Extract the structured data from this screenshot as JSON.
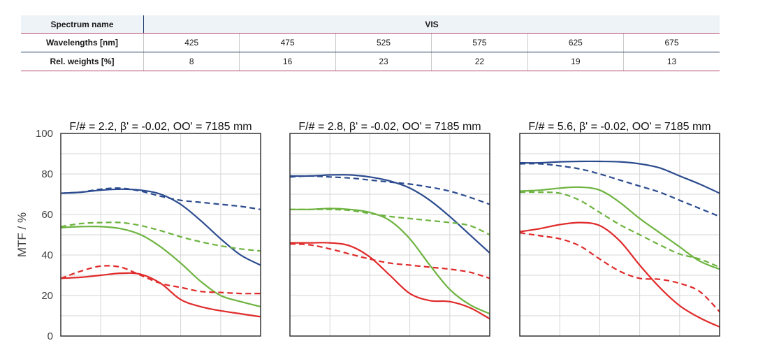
{
  "spectrum_table": {
    "spectrum_label": "Spectrum name",
    "spectrum_value": "VIS",
    "wavelength_label": "Wavelengths [nm]",
    "wavelengths": [
      "425",
      "475",
      "525",
      "575",
      "625",
      "675"
    ],
    "weights_label": "Rel. weights [%]",
    "weights": [
      "8",
      "16",
      "23",
      "22",
      "19",
      "13"
    ]
  },
  "colors": {
    "blue": "#2b4b8f",
    "green": "#6db33f",
    "red": "#e02a2a",
    "grid": "#d6d6d6",
    "frame": "#333333"
  },
  "chart_data": [
    {
      "type": "line",
      "title": "F/# = 2.2, β' = -0.02, OO' = 7185 mm",
      "ylabel": "MTF / %",
      "ylim": [
        0,
        100
      ],
      "yticks": [
        "0",
        "20",
        "40",
        "60",
        "80",
        "100"
      ],
      "grid": true,
      "x": [
        0,
        0.1,
        0.2,
        0.3,
        0.4,
        0.5,
        0.6,
        0.7,
        0.8,
        0.9,
        1.0
      ],
      "series": [
        {
          "color": "blue",
          "style": "solid",
          "values": [
            70.5,
            71,
            72,
            72.5,
            72,
            70,
            65,
            57,
            48,
            40,
            35
          ]
        },
        {
          "color": "blue",
          "style": "dashed",
          "values": [
            70.5,
            71,
            72.5,
            73,
            71.5,
            69,
            67,
            66,
            65,
            64,
            62.5
          ]
        },
        {
          "color": "green",
          "style": "solid",
          "values": [
            53.5,
            54,
            54,
            53,
            50,
            44,
            36,
            27,
            20,
            17,
            14.5
          ]
        },
        {
          "color": "green",
          "style": "dashed",
          "values": [
            54,
            55.5,
            56,
            56,
            54.5,
            52,
            49,
            46.5,
            44.5,
            43,
            42
          ]
        },
        {
          "color": "red",
          "style": "solid",
          "values": [
            28.5,
            29,
            30,
            31,
            30.5,
            26,
            18,
            14.5,
            12.5,
            11,
            9.5
          ]
        },
        {
          "color": "red",
          "style": "dashed",
          "values": [
            28.5,
            32,
            34.5,
            34,
            30,
            26,
            24,
            22,
            21.5,
            21,
            21
          ]
        }
      ]
    },
    {
      "type": "line",
      "title": "F/# = 2.8, β' = -0.02, OO' = 7185 mm",
      "ylabel": "",
      "ylim": [
        0,
        100
      ],
      "grid": true,
      "x": [
        0,
        0.1,
        0.2,
        0.3,
        0.4,
        0.5,
        0.6,
        0.7,
        0.8,
        0.9,
        1.0
      ],
      "series": [
        {
          "color": "blue",
          "style": "solid",
          "values": [
            79,
            79,
            79.5,
            79.5,
            78.5,
            76.5,
            73,
            67,
            59,
            50,
            41
          ]
        },
        {
          "color": "blue",
          "style": "dashed",
          "values": [
            78.5,
            79,
            78.5,
            78,
            77,
            76,
            75,
            73.5,
            71.5,
            68.5,
            65
          ]
        },
        {
          "color": "green",
          "style": "solid",
          "values": [
            62.5,
            62.5,
            63,
            62.5,
            61,
            57,
            48,
            35,
            23,
            15.5,
            11
          ]
        },
        {
          "color": "green",
          "style": "dashed",
          "values": [
            62.5,
            62.5,
            62.5,
            62,
            60.5,
            59,
            58,
            57,
            56,
            54.5,
            50
          ]
        },
        {
          "color": "red",
          "style": "solid",
          "values": [
            46,
            46,
            46,
            44.5,
            39,
            30,
            21,
            17.5,
            17,
            14,
            8.5
          ]
        },
        {
          "color": "red",
          "style": "dashed",
          "values": [
            45.5,
            45,
            43,
            40.5,
            38,
            36,
            35,
            34,
            33,
            31.5,
            28.5
          ]
        }
      ]
    },
    {
      "type": "line",
      "title": "F/# = 5.6, β' = -0.02, OO' = 7185 mm",
      "ylabel": "",
      "ylim": [
        0,
        100
      ],
      "grid": true,
      "x": [
        0,
        0.1,
        0.2,
        0.3,
        0.4,
        0.5,
        0.6,
        0.7,
        0.8,
        0.9,
        1.0
      ],
      "series": [
        {
          "color": "blue",
          "style": "solid",
          "values": [
            85.5,
            85.5,
            86,
            86.2,
            86.2,
            86,
            85,
            83,
            79,
            75,
            70.5
          ]
        },
        {
          "color": "blue",
          "style": "dashed",
          "values": [
            85,
            85,
            84,
            82.5,
            80,
            77,
            74,
            71,
            67,
            63,
            59
          ]
        },
        {
          "color": "green",
          "style": "solid",
          "values": [
            71.5,
            72,
            73,
            73.5,
            72,
            66,
            58,
            51,
            44,
            37,
            33
          ]
        },
        {
          "color": "green",
          "style": "dashed",
          "values": [
            71,
            71,
            70.5,
            67,
            61,
            55,
            50,
            45,
            40.5,
            38,
            34
          ]
        },
        {
          "color": "red",
          "style": "solid",
          "values": [
            51.5,
            53,
            55,
            56,
            54.5,
            47,
            35,
            24,
            15,
            9,
            4.5
          ]
        },
        {
          "color": "red",
          "style": "dashed",
          "values": [
            51,
            49.5,
            48,
            44.5,
            38,
            32,
            28.5,
            28,
            26,
            22,
            12
          ]
        }
      ]
    }
  ]
}
